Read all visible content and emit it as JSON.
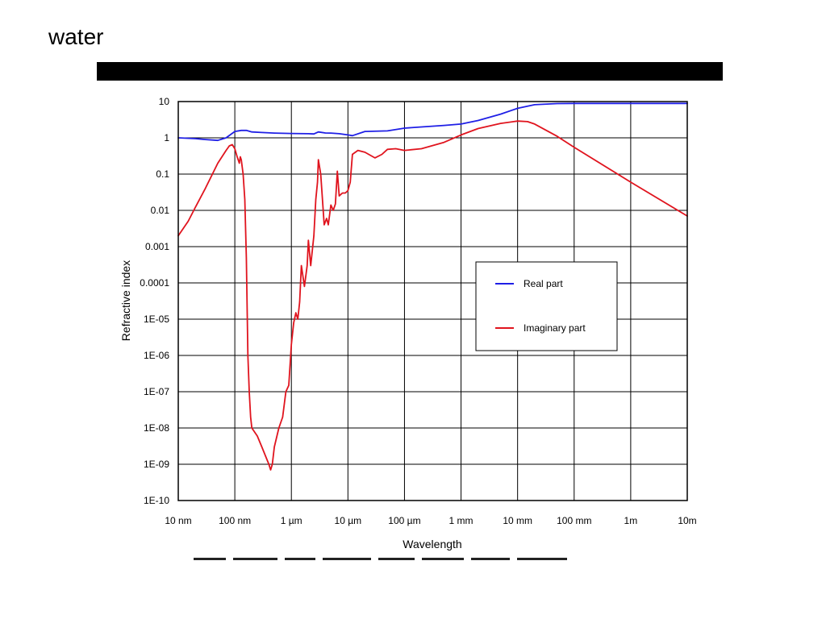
{
  "slide": {
    "title": "water"
  },
  "chart_data": {
    "type": "line",
    "title": "",
    "xlabel": "Wavelength",
    "ylabel": "Refractive index",
    "x_scale": "log",
    "y_scale": "log",
    "grid": true,
    "legend_position": "right-middle",
    "xlim": [
      "10 nm",
      "10m"
    ],
    "ylim": [
      "1E-10",
      "10"
    ],
    "x_ticks": [
      "10 nm",
      "100 nm",
      "1 µm",
      "10 µm",
      "100 µm",
      "1 mm",
      "10 mm",
      "100 mm",
      "1m",
      "10m"
    ],
    "y_ticks": [
      "10",
      "1",
      "0.1",
      "0.01",
      "0.001",
      "0.0001",
      "1E-05",
      "1E-06",
      "1E-07",
      "1E-08",
      "1E-09",
      "1E-10"
    ],
    "series": [
      {
        "name": "Real part",
        "color": "#1f1fe6",
        "x_m": [
          1e-08,
          2e-08,
          3e-08,
          5e-08,
          7e-08,
          1e-07,
          1.3e-07,
          1.6e-07,
          2e-07,
          3e-07,
          5e-07,
          1e-06,
          2e-06,
          2.5e-06,
          3e-06,
          4e-06,
          5e-06,
          7e-06,
          1e-05,
          1.2e-05,
          2e-05,
          5e-05,
          0.0001,
          0.0002,
          0.0005,
          0.001,
          0.002,
          0.005,
          0.01,
          0.02,
          0.05,
          0.1,
          1,
          10
        ],
        "y": [
          1.0,
          0.95,
          0.9,
          0.85,
          1.0,
          1.5,
          1.6,
          1.6,
          1.45,
          1.4,
          1.35,
          1.32,
          1.3,
          1.28,
          1.45,
          1.36,
          1.35,
          1.3,
          1.2,
          1.15,
          1.5,
          1.55,
          1.85,
          2.0,
          2.2,
          2.4,
          3.0,
          4.5,
          6.5,
          8.2,
          8.8,
          8.9,
          8.9,
          8.9
        ]
      },
      {
        "name": "Imaginary part",
        "color": "#e0141e",
        "x_m": [
          1e-08,
          1.5e-08,
          2e-08,
          3e-08,
          5e-08,
          7e-08,
          8e-08,
          9e-08,
          1e-07,
          1.1e-07,
          1.2e-07,
          1.25e-07,
          1.3e-07,
          1.4e-07,
          1.5e-07,
          1.6e-07,
          1.7e-07,
          1.8e-07,
          1.9e-07,
          2e-07,
          2.5e-07,
          3e-07,
          4e-07,
          4.3e-07,
          4.6e-07,
          5e-07,
          6e-07,
          7e-07,
          8e-07,
          9e-07,
          1e-06,
          1.1e-06,
          1.2e-06,
          1.3e-06,
          1.4e-06,
          1.5e-06,
          1.7e-06,
          1.9e-06,
          2e-06,
          2.2e-06,
          2.5e-06,
          2.7e-06,
          2.9e-06,
          3e-06,
          3.3e-06,
          3.8e-06,
          4.2e-06,
          4.5e-06,
          5e-06,
          5.5e-06,
          6e-06,
          6.5e-06,
          7e-06,
          8e-06,
          9e-06,
          1e-05,
          1.1e-05,
          1.2e-05,
          1.5e-05,
          2e-05,
          3e-05,
          4e-05,
          5e-05,
          7e-05,
          0.0001,
          0.0002,
          0.0005,
          0.001,
          0.002,
          0.005,
          0.01,
          0.015,
          0.02,
          0.05,
          0.1,
          1,
          10
        ],
        "y": [
          0.002,
          0.005,
          0.012,
          0.04,
          0.2,
          0.45,
          0.6,
          0.65,
          0.5,
          0.3,
          0.2,
          0.3,
          0.25,
          0.1,
          0.02,
          0.0005,
          1e-06,
          1e-07,
          2e-08,
          1e-08,
          6e-09,
          3e-09,
          1e-09,
          7e-10,
          1e-09,
          3e-09,
          1e-08,
          2e-08,
          1e-07,
          1.5e-07,
          2e-06,
          8e-06,
          1.5e-05,
          1e-05,
          3e-05,
          0.0003,
          8e-05,
          0.0003,
          0.0015,
          0.0003,
          0.002,
          0.02,
          0.06,
          0.25,
          0.1,
          0.004,
          0.006,
          0.004,
          0.014,
          0.01,
          0.015,
          0.12,
          0.025,
          0.03,
          0.03,
          0.035,
          0.06,
          0.35,
          0.45,
          0.4,
          0.28,
          0.35,
          0.48,
          0.5,
          0.45,
          0.5,
          0.75,
          1.2,
          1.8,
          2.5,
          2.9,
          2.8,
          2.4,
          1.1,
          0.55,
          0.06,
          0.007
        ]
      }
    ]
  }
}
